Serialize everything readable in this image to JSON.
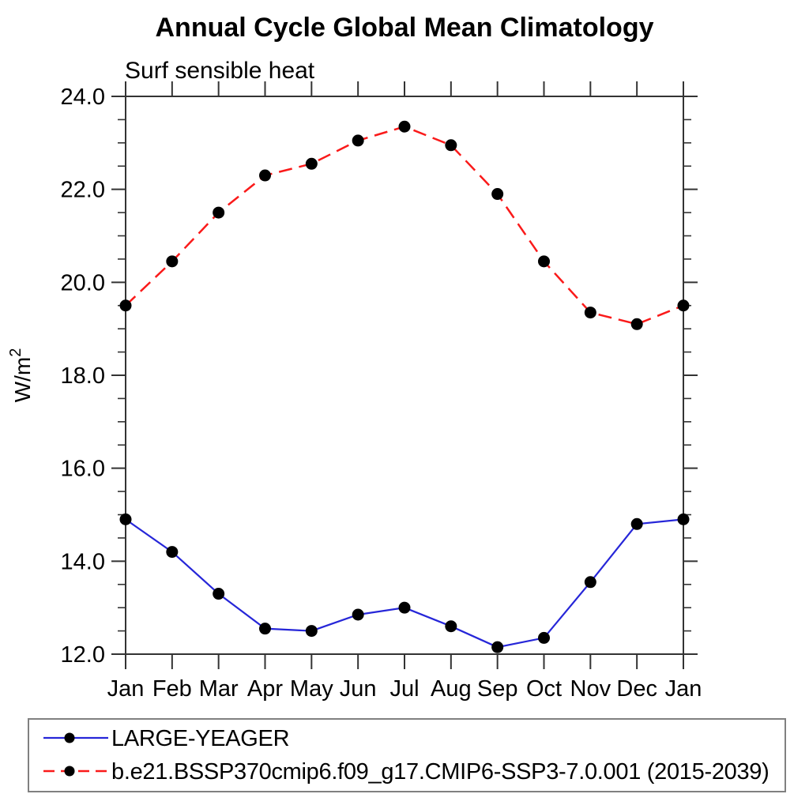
{
  "page": {
    "background": "#ffffff"
  },
  "chart_data": {
    "type": "line",
    "title": "Annual Cycle Global Mean Climatology",
    "subtitle": "Surf sensible heat",
    "ylabel": {
      "base": "W/m",
      "sup": "2"
    },
    "categories": [
      "Jan",
      "Feb",
      "Mar",
      "Apr",
      "May",
      "Jun",
      "Jul",
      "Aug",
      "Sep",
      "Oct",
      "Nov",
      "Dec",
      "Jan"
    ],
    "ylim": [
      12.0,
      24.0
    ],
    "ytick_step": 2.0,
    "ytick_labels": [
      "12.0",
      "14.0",
      "16.0",
      "18.0",
      "20.0",
      "22.0",
      "24.0"
    ],
    "minor_ticks_per_major": 3,
    "grid": false,
    "axis_color": "#333333",
    "marker_color": "#000000",
    "legend_position": "bottom-left",
    "legend_border_color": "#808080",
    "series": [
      {
        "name": "LARGE-YEAGER",
        "color": "#2626d8",
        "line_style": "solid",
        "marker": "filled-circle",
        "values": [
          14.9,
          14.2,
          13.3,
          12.55,
          12.5,
          12.85,
          13.0,
          12.6,
          12.15,
          12.35,
          13.55,
          14.8,
          14.9
        ]
      },
      {
        "name": "b.e21.BSSP370cmip6.f09_g17.CMIP6-SSP3-7.0.001 (2015-2039)",
        "color": "#fa1a1a",
        "line_style": "dashed",
        "marker": "filled-circle",
        "values": [
          19.5,
          20.45,
          21.5,
          22.3,
          22.55,
          23.05,
          23.35,
          22.95,
          21.9,
          20.45,
          19.35,
          19.1,
          19.5
        ]
      }
    ]
  }
}
